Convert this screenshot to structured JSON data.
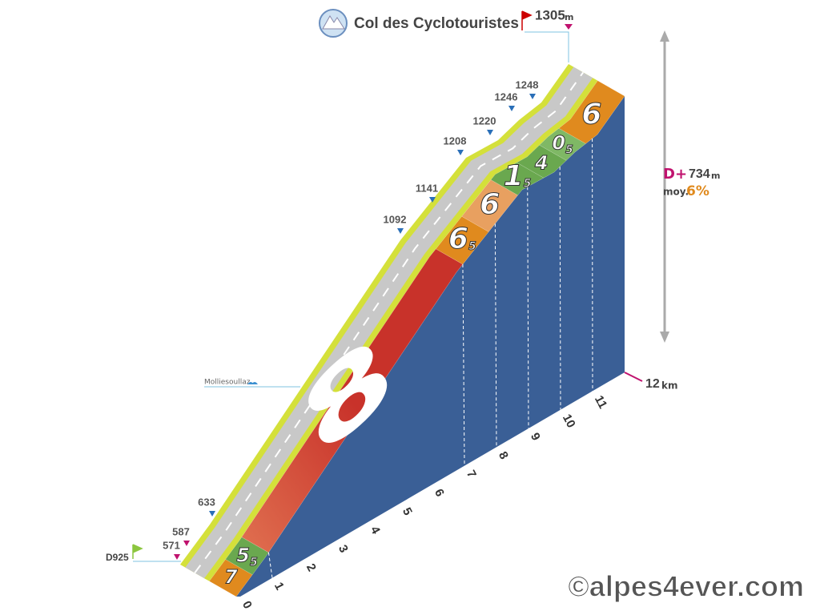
{
  "title": "Col des Cyclotouristes",
  "summit": {
    "altitude": "1305",
    "unit": "m"
  },
  "stats": {
    "gain_label": "D+",
    "gain": "734",
    "gain_unit": "m",
    "average_label": "moy.",
    "average": "6%"
  },
  "distance": {
    "value": "12",
    "unit": "km"
  },
  "start": {
    "road": "D925"
  },
  "place": "Molliesoullaz",
  "altitudes": [
    "571",
    "587",
    "633",
    "1092",
    "1141",
    "1208",
    "1220",
    "1246",
    "1248"
  ],
  "km_labels": [
    "0",
    "1",
    "2",
    "3",
    "4",
    "5",
    "6",
    "7",
    "8",
    "9",
    "10",
    "11"
  ],
  "gradients": [
    {
      "label": "7"
    },
    {
      "label": "5",
      "decimal": "5"
    },
    {
      "label": "8"
    },
    {
      "label": "6",
      "decimal": "5"
    },
    {
      "label": "6"
    },
    {
      "label": "1",
      "decimal": "5"
    },
    {
      "label": "4"
    },
    {
      "label": "0",
      "decimal": "5"
    },
    {
      "label": "6"
    }
  ],
  "copyright": "©alpes4ever.com"
}
